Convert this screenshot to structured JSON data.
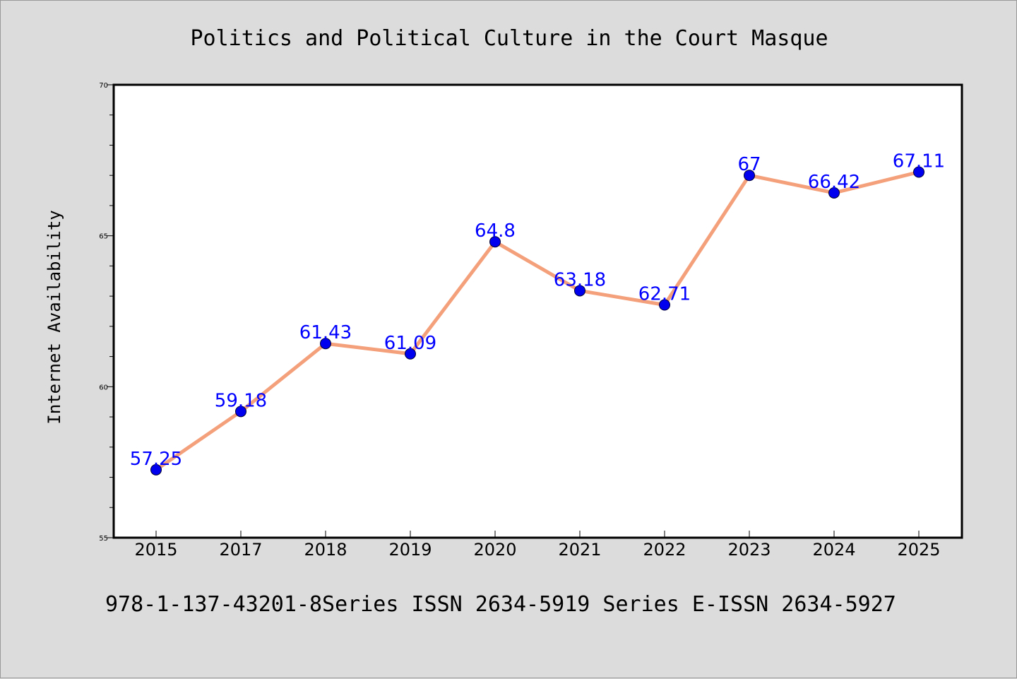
{
  "chart_data": {
    "type": "line",
    "title": "Politics and Political Culture in the Court Masque",
    "xlabel": "",
    "ylabel": "Internet Availability",
    "categories": [
      "2015",
      "2017",
      "2018",
      "2019",
      "2020",
      "2021",
      "2022",
      "2023",
      "2024",
      "2025"
    ],
    "series": [
      {
        "values": [
          57.25,
          59.18,
          61.43,
          61.09,
          64.8,
          63.18,
          62.71,
          67,
          66.42,
          67.11
        ],
        "labels": [
          "57.25",
          "59.18",
          "61.43",
          "61.09",
          "64.8",
          "63.18",
          "62.71",
          "67",
          "66.42",
          "67.11"
        ],
        "line_color": "#f4a07a",
        "marker_color": "#0000ee",
        "label_color": "#0000ff"
      }
    ],
    "ylim": [
      55,
      70
    ],
    "yticks": [
      "55",
      "60",
      "65",
      "70"
    ],
    "yminor_step": 1,
    "grid": false,
    "legend": "none",
    "footer": "978-1-137-43201-8Series ISSN 2634-5919 Series E-ISSN 2634-5927"
  },
  "colors": {
    "background": "#dcdcdc",
    "plot_background": "#ffffff"
  }
}
